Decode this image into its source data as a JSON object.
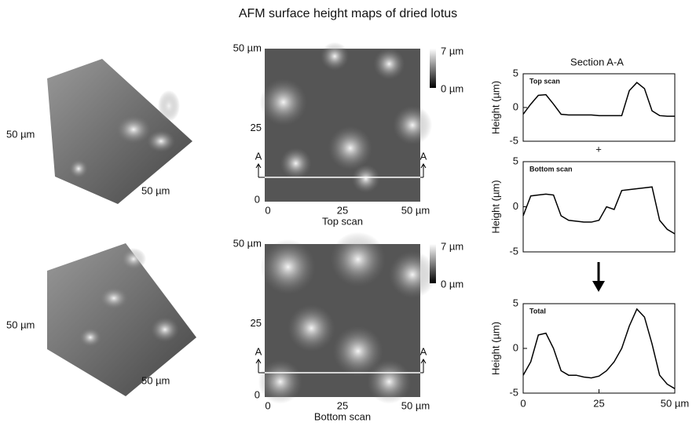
{
  "title": "AFM surface height maps of dried lotus",
  "surface_3d": [
    {
      "side_label": "50 µm",
      "front_label": "50 µm"
    },
    {
      "side_label": "50 µm",
      "front_label": "50 µm"
    }
  ],
  "height_maps": [
    {
      "caption": "Top scan",
      "y_top": "50 µm",
      "y_mid": "25",
      "y_zero": "0",
      "x_zero": "0",
      "x_mid": "25",
      "x_end": "50 µm",
      "section_left": "A",
      "section_right": "A",
      "colorbar_max": "7 µm",
      "colorbar_min": "0 µm"
    },
    {
      "caption": "Bottom scan",
      "y_top": "50 µm",
      "y_mid": "25",
      "y_zero": "0",
      "x_zero": "0",
      "x_mid": "25",
      "x_end": "50 µm",
      "section_left": "A",
      "section_right": "A",
      "colorbar_max": "7 µm",
      "colorbar_min": "0 µm"
    }
  ],
  "section_title": "Section A-A",
  "plus": "+",
  "chart_data": [
    {
      "type": "line",
      "annotation": "Top scan",
      "ylabel": "Height (µm)",
      "x": [
        0,
        2.5,
        5,
        7.5,
        10,
        12.5,
        15,
        17.5,
        20,
        22.5,
        25,
        27.5,
        30,
        32.5,
        35,
        37.5,
        40,
        42.5,
        45,
        47.5,
        50
      ],
      "series": [
        {
          "color": "#000000",
          "values": [
            -1,
            0.5,
            1.8,
            1.9,
            0.5,
            -1,
            -1.1,
            -1.1,
            -1.1,
            -1.1,
            -1.2,
            -1.2,
            -1.2,
            -1.2,
            2.5,
            3.7,
            2.8,
            -0.5,
            -1.2,
            -1.3,
            -1.3
          ]
        }
      ],
      "xlim": [
        0,
        50
      ],
      "ylim": [
        -5,
        5
      ],
      "yticks": [
        -5,
        0,
        5
      ]
    },
    {
      "type": "line",
      "annotation": "Bottom scan",
      "ylabel": "Height (µm)",
      "x": [
        0,
        2.5,
        5,
        7.5,
        10,
        12.5,
        15,
        17.5,
        20,
        22.5,
        25,
        27.5,
        30,
        32.5,
        35,
        37.5,
        40,
        42.5,
        45,
        47.5,
        50
      ],
      "series": [
        {
          "color": "#000000",
          "values": [
            -1,
            1.2,
            1.3,
            1.4,
            1.3,
            -1,
            -1.5,
            -1.6,
            -1.7,
            -1.7,
            -1.5,
            0,
            -0.3,
            1.8,
            1.9,
            2,
            2.1,
            2.2,
            -1.5,
            -2.5,
            -3
          ]
        }
      ],
      "xlim": [
        0,
        50
      ],
      "ylim": [
        -5,
        5
      ],
      "yticks": [
        -5,
        0,
        5
      ]
    },
    {
      "type": "line",
      "annotation": "Total",
      "ylabel": "Height (µm)",
      "x": [
        0,
        2.5,
        5,
        7.5,
        10,
        12.5,
        15,
        17.5,
        20,
        22.5,
        25,
        27.5,
        30,
        32.5,
        35,
        37.5,
        40,
        42.5,
        45,
        47.5,
        50
      ],
      "series": [
        {
          "color": "#000000",
          "values": [
            -3,
            -1.5,
            1.5,
            1.7,
            0,
            -2.5,
            -3,
            -3,
            -3.2,
            -3.3,
            -3.1,
            -2.5,
            -1.5,
            0,
            2.5,
            4.4,
            3.5,
            0.5,
            -3,
            -4,
            -4.5
          ]
        }
      ],
      "xlim": [
        0,
        50
      ],
      "ylim": [
        -5,
        5
      ],
      "yticks": [
        -5,
        0,
        5
      ],
      "xticks": [
        0,
        25,
        {
          "value": 50,
          "label": "50 µm"
        }
      ]
    }
  ]
}
